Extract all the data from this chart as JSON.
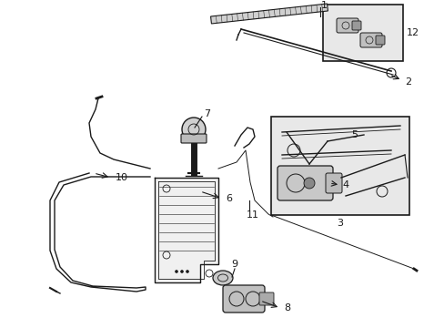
{
  "bg_color": "#ffffff",
  "line_color": "#1a1a1a",
  "box_bg": "#ececec",
  "fig_width": 4.89,
  "fig_height": 3.6,
  "dpi": 100
}
